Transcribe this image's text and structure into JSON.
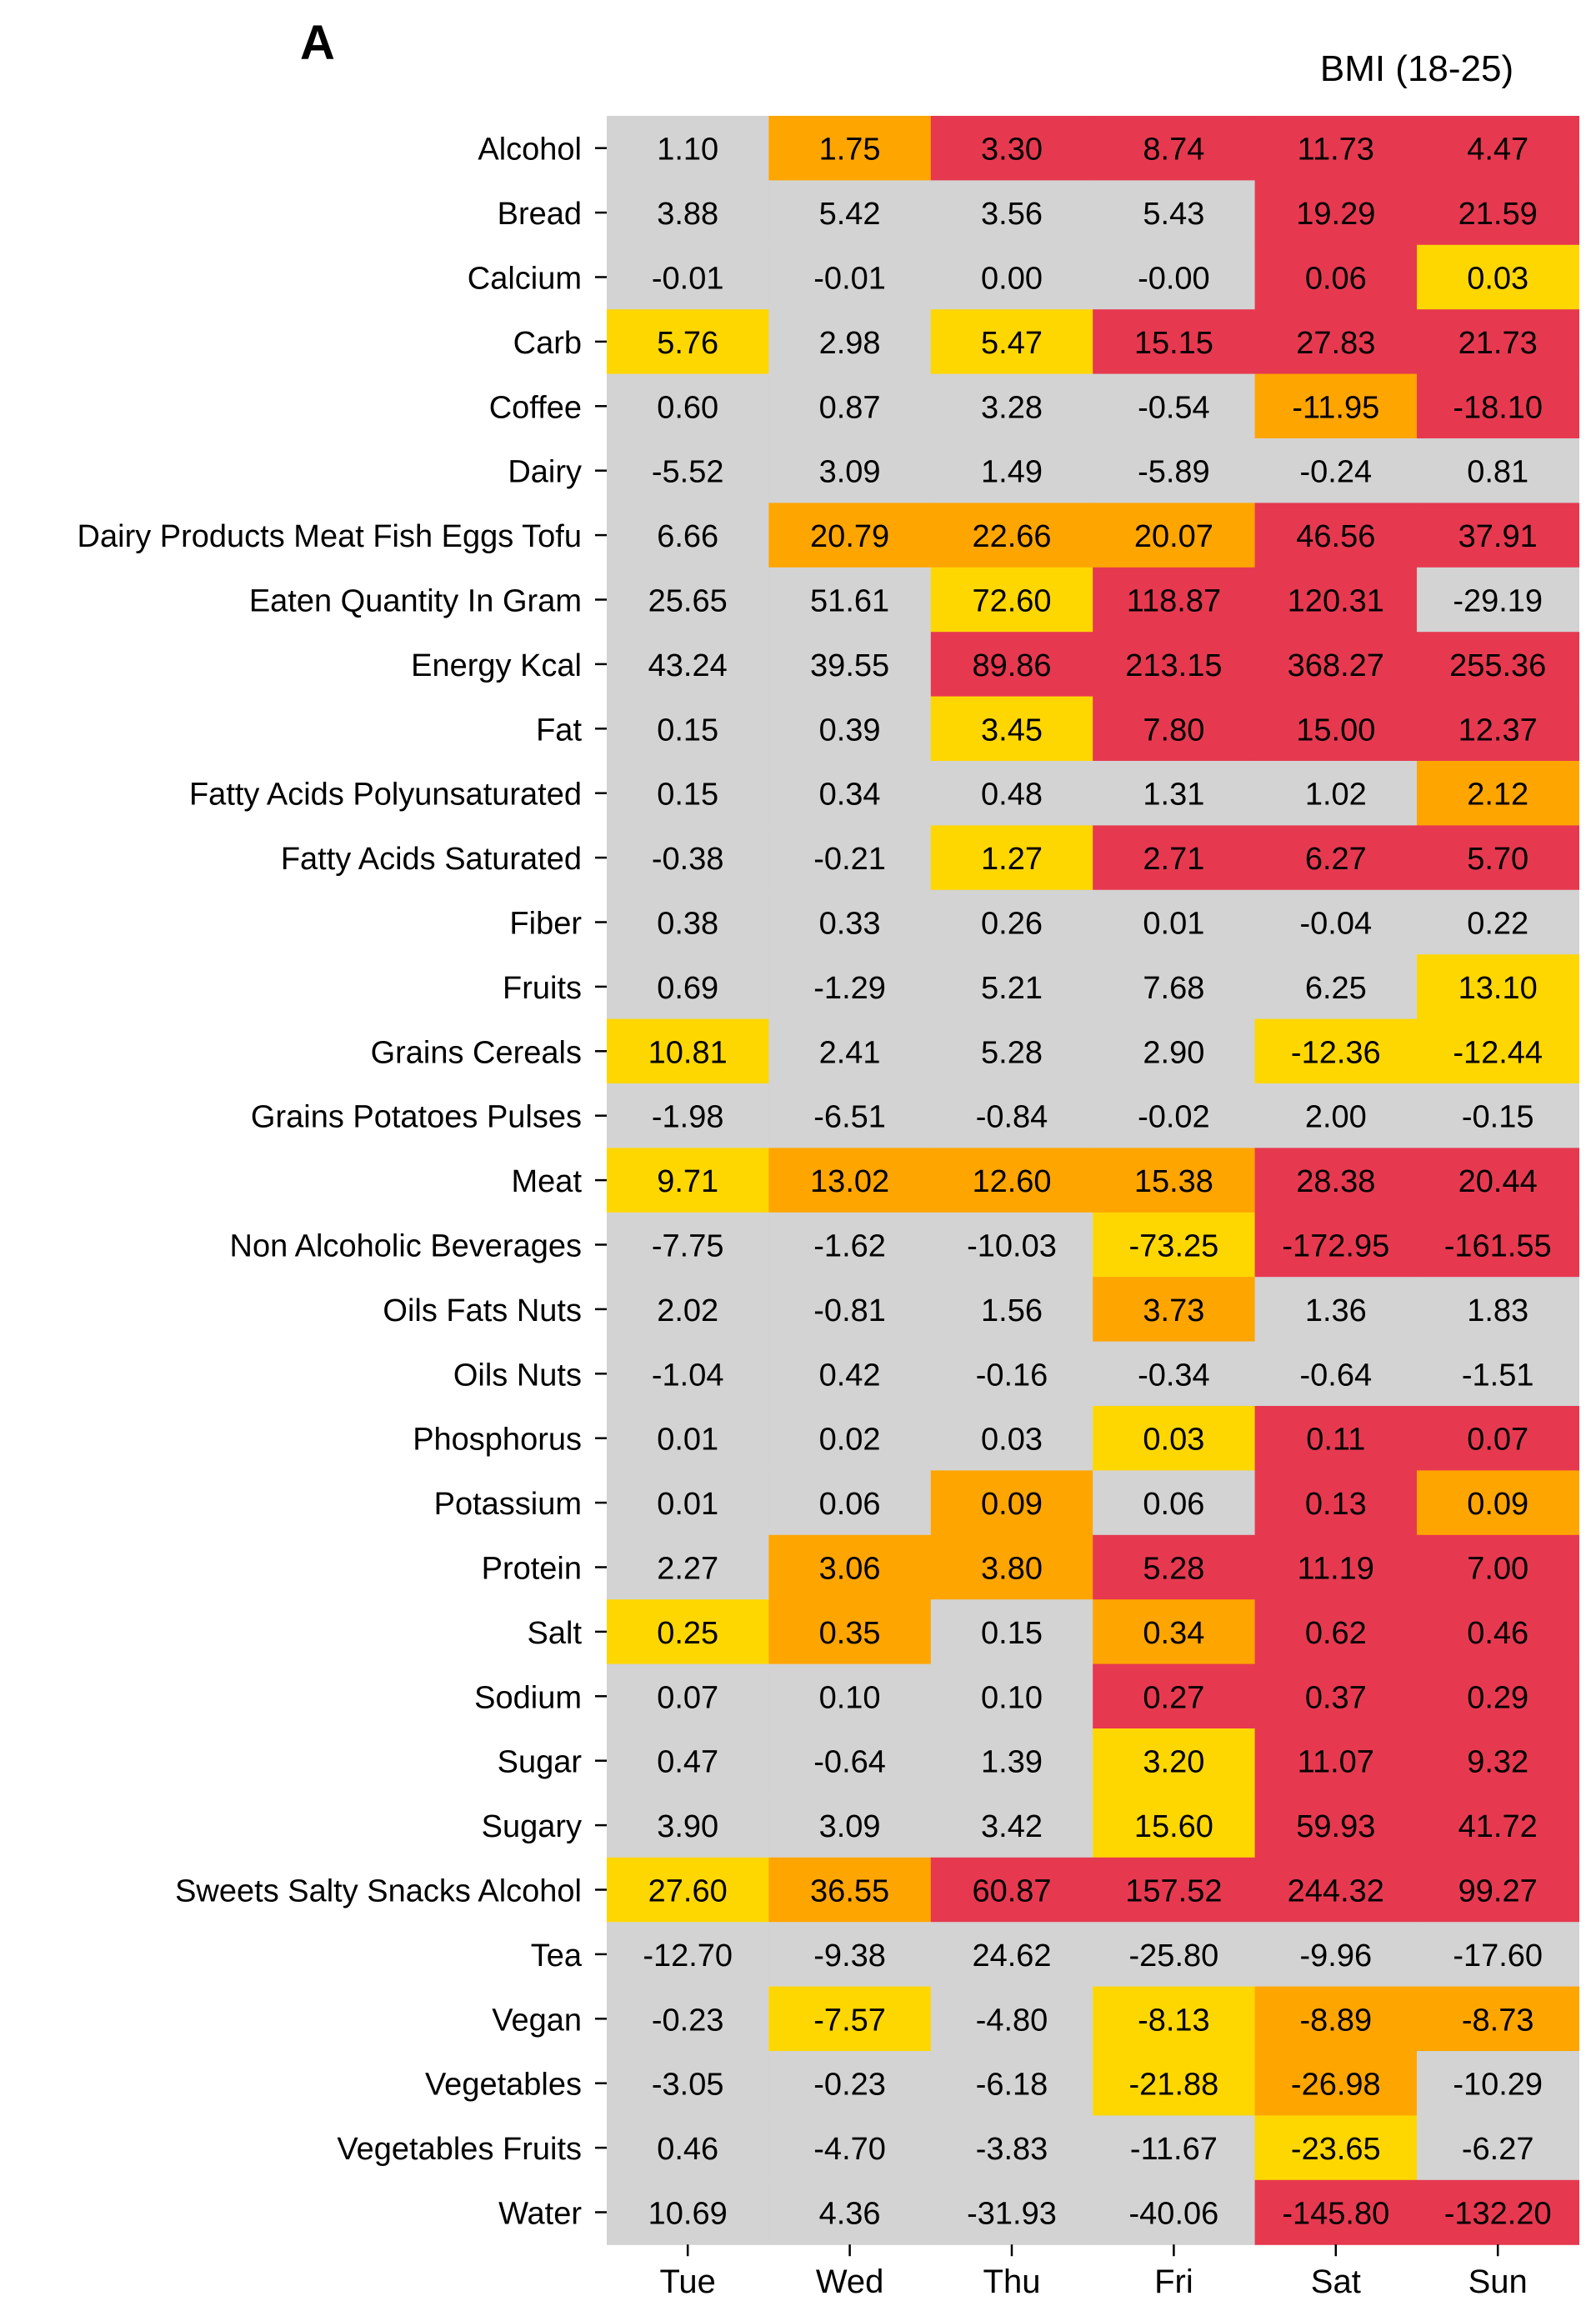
{
  "panel_label": "A",
  "chart_data": {
    "type": "heatmap",
    "title": "BMI (18-25)",
    "xlabel": "",
    "ylabel": "",
    "grid": false,
    "legend": "none",
    "colors": {
      "neutral": "#d3d3d3",
      "yellow": "#ffd700",
      "orange": "#ffa500",
      "red": "#e63950"
    },
    "columns": [
      "Tue",
      "Wed",
      "Thu",
      "Fri",
      "Sat",
      "Sun"
    ],
    "rows": [
      "Alcohol",
      "Bread",
      "Calcium",
      "Carb",
      "Coffee",
      "Dairy",
      "Dairy Products Meat Fish Eggs Tofu",
      "Eaten Quantity In Gram",
      "Energy Kcal",
      "Fat",
      "Fatty Acids Polyunsaturated",
      "Fatty Acids Saturated",
      "Fiber",
      "Fruits",
      "Grains Cereals",
      "Grains Potatoes Pulses",
      "Meat",
      "Non Alcoholic Beverages",
      "Oils Fats Nuts",
      "Oils Nuts",
      "Phosphorus",
      "Potassium",
      "Protein",
      "Salt",
      "Sodium",
      "Sugar",
      "Sugary",
      "Sweets Salty Snacks Alcohol",
      "Tea",
      "Vegan",
      "Vegetables",
      "Vegetables Fruits",
      "Water"
    ],
    "values": [
      [
        "1.10",
        "1.75",
        "3.30",
        "8.74",
        "11.73",
        "4.47"
      ],
      [
        "3.88",
        "5.42",
        "3.56",
        "5.43",
        "19.29",
        "21.59"
      ],
      [
        "-0.01",
        "-0.01",
        "0.00",
        "-0.00",
        "0.06",
        "0.03"
      ],
      [
        "5.76",
        "2.98",
        "5.47",
        "15.15",
        "27.83",
        "21.73"
      ],
      [
        "0.60",
        "0.87",
        "3.28",
        "-0.54",
        "-11.95",
        "-18.10"
      ],
      [
        "-5.52",
        "3.09",
        "1.49",
        "-5.89",
        "-0.24",
        "0.81"
      ],
      [
        "6.66",
        "20.79",
        "22.66",
        "20.07",
        "46.56",
        "37.91"
      ],
      [
        "25.65",
        "51.61",
        "72.60",
        "118.87",
        "120.31",
        "-29.19"
      ],
      [
        "43.24",
        "39.55",
        "89.86",
        "213.15",
        "368.27",
        "255.36"
      ],
      [
        "0.15",
        "0.39",
        "3.45",
        "7.80",
        "15.00",
        "12.37"
      ],
      [
        "0.15",
        "0.34",
        "0.48",
        "1.31",
        "1.02",
        "2.12"
      ],
      [
        "-0.38",
        "-0.21",
        "1.27",
        "2.71",
        "6.27",
        "5.70"
      ],
      [
        "0.38",
        "0.33",
        "0.26",
        "0.01",
        "-0.04",
        "0.22"
      ],
      [
        "0.69",
        "-1.29",
        "5.21",
        "7.68",
        "6.25",
        "13.10"
      ],
      [
        "10.81",
        "2.41",
        "5.28",
        "2.90",
        "-12.36",
        "-12.44"
      ],
      [
        "-1.98",
        "-6.51",
        "-0.84",
        "-0.02",
        "2.00",
        "-0.15"
      ],
      [
        "9.71",
        "13.02",
        "12.60",
        "15.38",
        "28.38",
        "20.44"
      ],
      [
        "-7.75",
        "-1.62",
        "-10.03",
        "-73.25",
        "-172.95",
        "-161.55"
      ],
      [
        "2.02",
        "-0.81",
        "1.56",
        "3.73",
        "1.36",
        "1.83"
      ],
      [
        "-1.04",
        "0.42",
        "-0.16",
        "-0.34",
        "-0.64",
        "-1.51"
      ],
      [
        "0.01",
        "0.02",
        "0.03",
        "0.03",
        "0.11",
        "0.07"
      ],
      [
        "0.01",
        "0.06",
        "0.09",
        "0.06",
        "0.13",
        "0.09"
      ],
      [
        "2.27",
        "3.06",
        "3.80",
        "5.28",
        "11.19",
        "7.00"
      ],
      [
        "0.25",
        "0.35",
        "0.15",
        "0.34",
        "0.62",
        "0.46"
      ],
      [
        "0.07",
        "0.10",
        "0.10",
        "0.27",
        "0.37",
        "0.29"
      ],
      [
        "0.47",
        "-0.64",
        "1.39",
        "3.20",
        "11.07",
        "9.32"
      ],
      [
        "3.90",
        "3.09",
        "3.42",
        "15.60",
        "59.93",
        "41.72"
      ],
      [
        "27.60",
        "36.55",
        "60.87",
        "157.52",
        "244.32",
        "99.27"
      ],
      [
        "-12.70",
        "-9.38",
        "24.62",
        "-25.80",
        "-9.96",
        "-17.60"
      ],
      [
        "-0.23",
        "-7.57",
        "-4.80",
        "-8.13",
        "-8.89",
        "-8.73"
      ],
      [
        "-3.05",
        "-0.23",
        "-6.18",
        "-21.88",
        "-26.98",
        "-10.29"
      ],
      [
        "0.46",
        "-4.70",
        "-3.83",
        "-11.67",
        "-23.65",
        "-6.27"
      ],
      [
        "10.69",
        "4.36",
        "-31.93",
        "-40.06",
        "-145.80",
        "-132.20"
      ]
    ],
    "cell_colors": [
      [
        "neutral",
        "orange",
        "red",
        "red",
        "red",
        "red"
      ],
      [
        "neutral",
        "neutral",
        "neutral",
        "neutral",
        "red",
        "red"
      ],
      [
        "neutral",
        "neutral",
        "neutral",
        "neutral",
        "red",
        "yellow"
      ],
      [
        "yellow",
        "neutral",
        "yellow",
        "red",
        "red",
        "red"
      ],
      [
        "neutral",
        "neutral",
        "neutral",
        "neutral",
        "orange",
        "red"
      ],
      [
        "neutral",
        "neutral",
        "neutral",
        "neutral",
        "neutral",
        "neutral"
      ],
      [
        "neutral",
        "orange",
        "orange",
        "orange",
        "red",
        "red"
      ],
      [
        "neutral",
        "neutral",
        "yellow",
        "red",
        "red",
        "neutral"
      ],
      [
        "neutral",
        "neutral",
        "red",
        "red",
        "red",
        "red"
      ],
      [
        "neutral",
        "neutral",
        "yellow",
        "red",
        "red",
        "red"
      ],
      [
        "neutral",
        "neutral",
        "neutral",
        "neutral",
        "neutral",
        "orange"
      ],
      [
        "neutral",
        "neutral",
        "yellow",
        "red",
        "red",
        "red"
      ],
      [
        "neutral",
        "neutral",
        "neutral",
        "neutral",
        "neutral",
        "neutral"
      ],
      [
        "neutral",
        "neutral",
        "neutral",
        "neutral",
        "neutral",
        "yellow"
      ],
      [
        "yellow",
        "neutral",
        "neutral",
        "neutral",
        "yellow",
        "yellow"
      ],
      [
        "neutral",
        "neutral",
        "neutral",
        "neutral",
        "neutral",
        "neutral"
      ],
      [
        "yellow",
        "orange",
        "orange",
        "orange",
        "red",
        "red"
      ],
      [
        "neutral",
        "neutral",
        "neutral",
        "yellow",
        "red",
        "red"
      ],
      [
        "neutral",
        "neutral",
        "neutral",
        "orange",
        "neutral",
        "neutral"
      ],
      [
        "neutral",
        "neutral",
        "neutral",
        "neutral",
        "neutral",
        "neutral"
      ],
      [
        "neutral",
        "neutral",
        "neutral",
        "yellow",
        "red",
        "red"
      ],
      [
        "neutral",
        "neutral",
        "orange",
        "neutral",
        "red",
        "orange"
      ],
      [
        "neutral",
        "orange",
        "orange",
        "red",
        "red",
        "red"
      ],
      [
        "yellow",
        "orange",
        "neutral",
        "orange",
        "red",
        "red"
      ],
      [
        "neutral",
        "neutral",
        "neutral",
        "red",
        "red",
        "red"
      ],
      [
        "neutral",
        "neutral",
        "neutral",
        "yellow",
        "red",
        "red"
      ],
      [
        "neutral",
        "neutral",
        "neutral",
        "yellow",
        "red",
        "red"
      ],
      [
        "yellow",
        "orange",
        "red",
        "red",
        "red",
        "red"
      ],
      [
        "neutral",
        "neutral",
        "neutral",
        "neutral",
        "neutral",
        "neutral"
      ],
      [
        "neutral",
        "yellow",
        "neutral",
        "yellow",
        "orange",
        "orange"
      ],
      [
        "neutral",
        "neutral",
        "neutral",
        "yellow",
        "orange",
        "neutral"
      ],
      [
        "neutral",
        "neutral",
        "neutral",
        "neutral",
        "yellow",
        "neutral"
      ],
      [
        "neutral",
        "neutral",
        "neutral",
        "neutral",
        "red",
        "red"
      ]
    ]
  }
}
